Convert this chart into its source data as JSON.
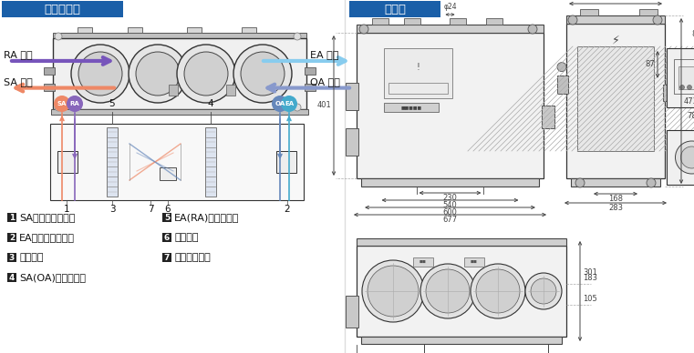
{
  "title_left": "方向と名称",
  "title_right": "寸法図",
  "title_bg_color": "#1a5fa8",
  "title_text_color": "#ffffff",
  "bg_color": "#ffffff",
  "legend_items": [
    [
      "1",
      "SAファンモーター",
      "5",
      "EA(RA)フィルター"
    ],
    [
      "2",
      "EAファンモーター",
      "6",
      "ドレン管"
    ],
    [
      "3",
      "交換素子",
      "7",
      "温度センサー"
    ],
    [
      "4",
      "SA(OA)フィルター",
      "",
      ""
    ]
  ],
  "arrow_ra_color": "#7755bb",
  "arrow_ea_color": "#88ccee",
  "arrow_oa_color": "#8899cc",
  "arrow_sa_color": "#ee8866",
  "sa_color": "#ee8866",
  "ra_color": "#8866bb",
  "oa_color": "#6688bb",
  "ea_color": "#44aacc",
  "line_color": "#333333",
  "dim_color": "#444444"
}
